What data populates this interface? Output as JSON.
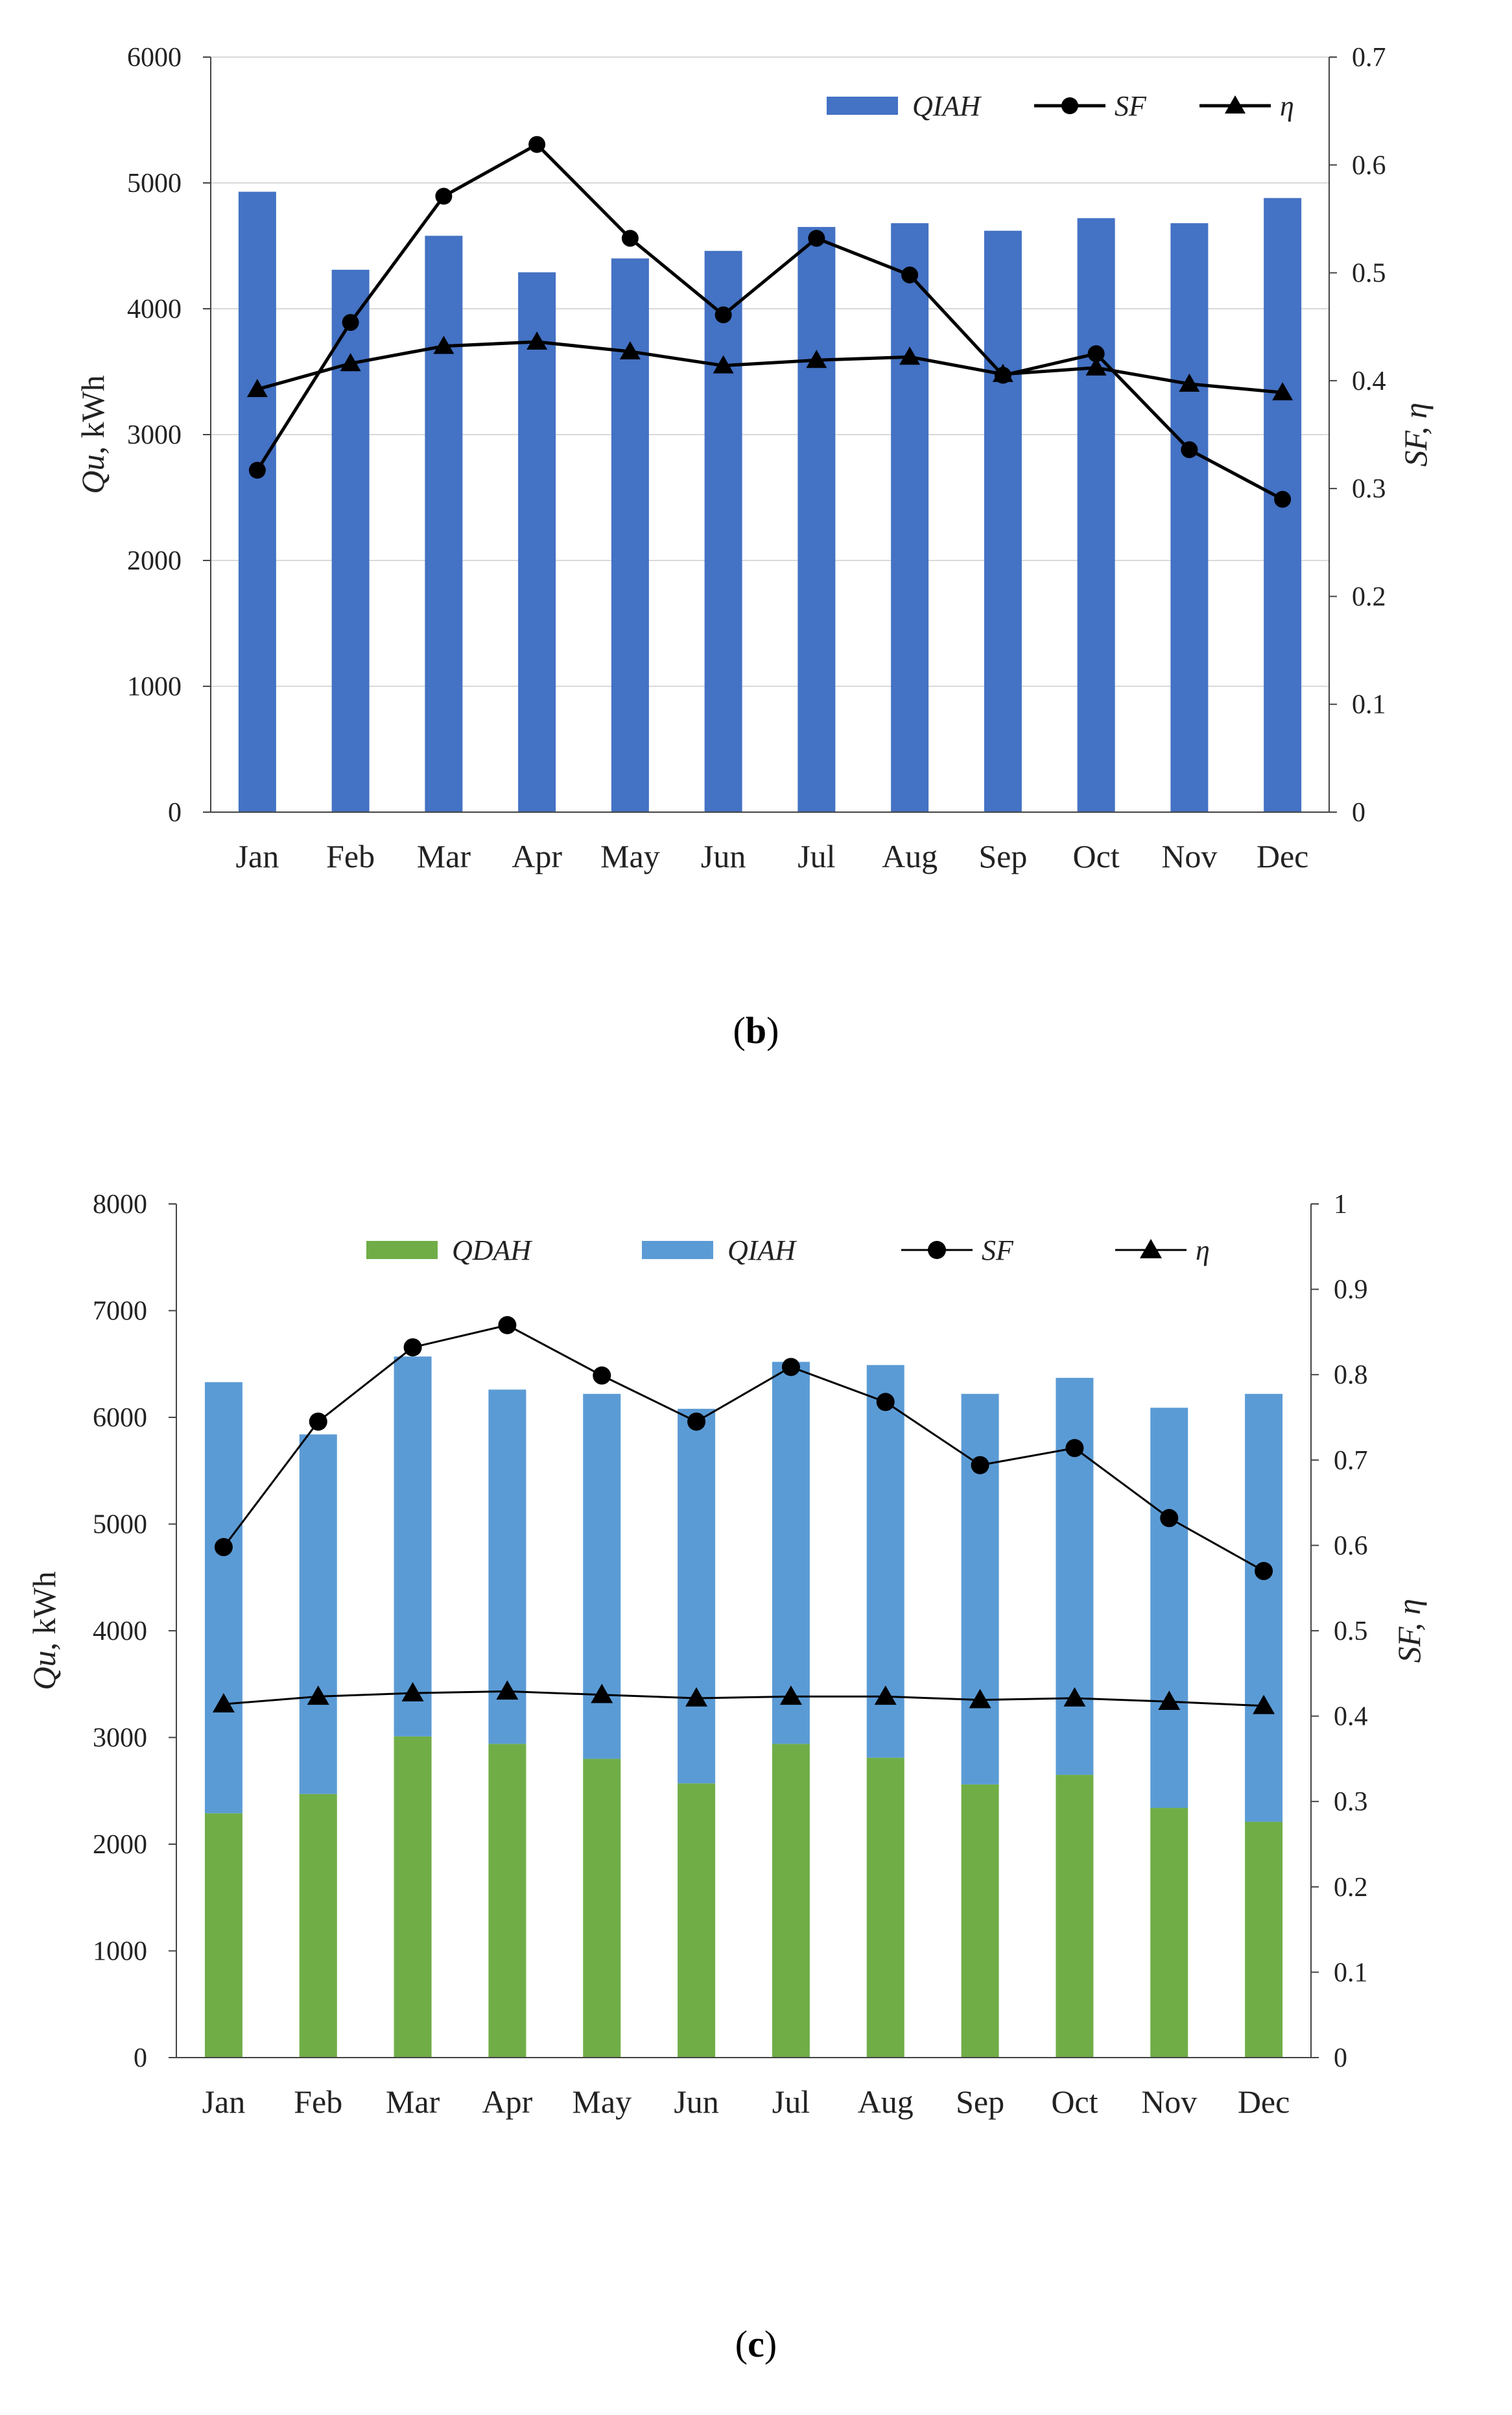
{
  "chart_data": [
    {
      "panel": "b",
      "type": "bar",
      "categories": [
        "Jan",
        "Feb",
        "Mar",
        "Apr",
        "May",
        "Jun",
        "Jul",
        "Aug",
        "Sep",
        "Oct",
        "Nov",
        "Dec"
      ],
      "series": [
        {
          "name": "QIAH",
          "kind": "bar",
          "axis": "left",
          "color": "#4472C4",
          "values": [
            4930,
            4310,
            4580,
            4290,
            4400,
            4460,
            4650,
            4680,
            4620,
            4720,
            4680,
            4880
          ]
        },
        {
          "name": "SF",
          "kind": "line",
          "marker": "circle",
          "axis": "right",
          "color": "#000000",
          "values": [
            0.317,
            0.454,
            0.571,
            0.619,
            0.532,
            0.461,
            0.532,
            0.498,
            0.405,
            0.425,
            0.336,
            0.29
          ]
        },
        {
          "name": "η",
          "kind": "line",
          "marker": "triangle",
          "axis": "right",
          "color": "#000000",
          "values": [
            0.392,
            0.416,
            0.432,
            0.436,
            0.427,
            0.414,
            0.419,
            0.422,
            0.406,
            0.412,
            0.397,
            0.389
          ]
        }
      ],
      "ylim": [
        0,
        6000
      ],
      "yticks": [
        0,
        1000,
        2000,
        3000,
        4000,
        5000,
        6000
      ],
      "y2lim": [
        0,
        0.7
      ],
      "y2ticks": [
        0,
        0.1,
        0.2,
        0.3,
        0.4,
        0.5,
        0.6,
        0.7
      ],
      "ylabel": {
        "main": "Qu",
        "rest": ", kWh"
      },
      "y2label": "SF, η",
      "legend_position": "top-right",
      "gridlines": true
    },
    {
      "panel": "c",
      "type": "bar",
      "stacked": true,
      "categories": [
        "Jan",
        "Feb",
        "Mar",
        "Apr",
        "May",
        "Jun",
        "Jul",
        "Aug",
        "Sep",
        "Oct",
        "Nov",
        "Dec"
      ],
      "series": [
        {
          "name": "QDAH",
          "kind": "bar",
          "axis": "left",
          "color": "#70AD47",
          "values": [
            2290,
            2470,
            3010,
            2940,
            2800,
            2570,
            2940,
            2810,
            2560,
            2650,
            2340,
            2210
          ]
        },
        {
          "name": "QIAH",
          "kind": "bar",
          "axis": "left",
          "color": "#5B9BD5",
          "values": [
            4040,
            3370,
            3560,
            3320,
            3420,
            3510,
            3580,
            3680,
            3660,
            3720,
            3750,
            4010
          ]
        },
        {
          "name": "SF",
          "kind": "line",
          "marker": "circle",
          "axis": "right",
          "color": "#000000",
          "values": [
            0.598,
            0.745,
            0.832,
            0.858,
            0.799,
            0.745,
            0.809,
            0.768,
            0.694,
            0.714,
            0.632,
            0.57
          ]
        },
        {
          "name": "η",
          "kind": "line",
          "marker": "triangle",
          "axis": "right",
          "color": "#000000",
          "values": [
            0.414,
            0.423,
            0.427,
            0.429,
            0.425,
            0.421,
            0.423,
            0.423,
            0.419,
            0.421,
            0.417,
            0.412
          ]
        }
      ],
      "ylim": [
        0,
        8000
      ],
      "yticks": [
        0,
        1000,
        2000,
        3000,
        4000,
        5000,
        6000,
        7000,
        8000
      ],
      "y2lim": [
        0,
        1
      ],
      "y2ticks": [
        0,
        0.1,
        0.2,
        0.3,
        0.4,
        0.5,
        0.6,
        0.7,
        0.8,
        0.9,
        1
      ],
      "ylabel": {
        "main": "Qu",
        "rest": ", kWh"
      },
      "y2label": "SF, η",
      "legend_position": "top",
      "gridlines": false
    }
  ],
  "panel_labels": {
    "b": "b",
    "c": "c"
  }
}
